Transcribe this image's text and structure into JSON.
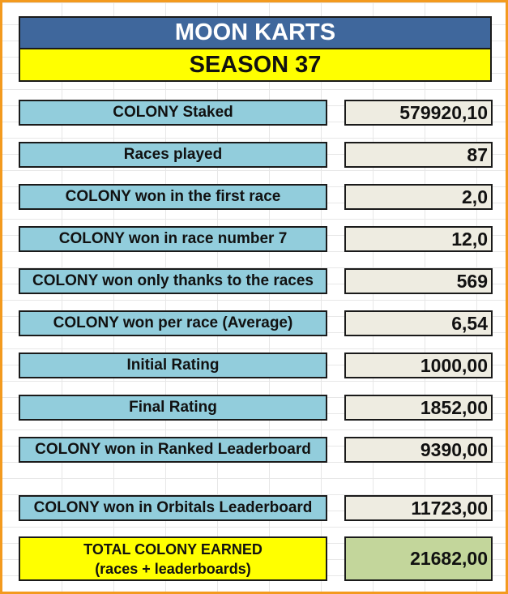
{
  "header": {
    "title": "MOON KARTS",
    "season": "SEASON 37"
  },
  "rows": [
    {
      "label": "COLONY Staked",
      "value": "579920,10"
    },
    {
      "label": "Races played",
      "value": "87"
    },
    {
      "label": "COLONY won in the first race",
      "value": "2,0"
    },
    {
      "label": "COLONY won in race number 7",
      "value": "12,0"
    },
    {
      "label": "COLONY won only thanks to the races",
      "value": "569"
    },
    {
      "label": "COLONY won per race (Average)",
      "value": "6,54"
    },
    {
      "label": "Initial Rating",
      "value": "1000,00"
    },
    {
      "label": "Final Rating",
      "value": "1852,00"
    },
    {
      "label": "COLONY won in Ranked Leaderboard",
      "value": "9390,00"
    },
    {
      "label": "COLONY won in Orbitals Leaderboard",
      "value": "11723,00"
    }
  ],
  "total": {
    "label_line1": "TOTAL COLONY EARNED",
    "label_line2": "(races + leaderboards)",
    "value": "21682,00"
  },
  "colors": {
    "frame": "#f39a1e",
    "title_bg": "#3f679c",
    "season_bg": "#ffff00",
    "label_bg": "#92cddc",
    "value_bg": "#eeece1",
    "total_value_bg": "#c3d69b"
  }
}
